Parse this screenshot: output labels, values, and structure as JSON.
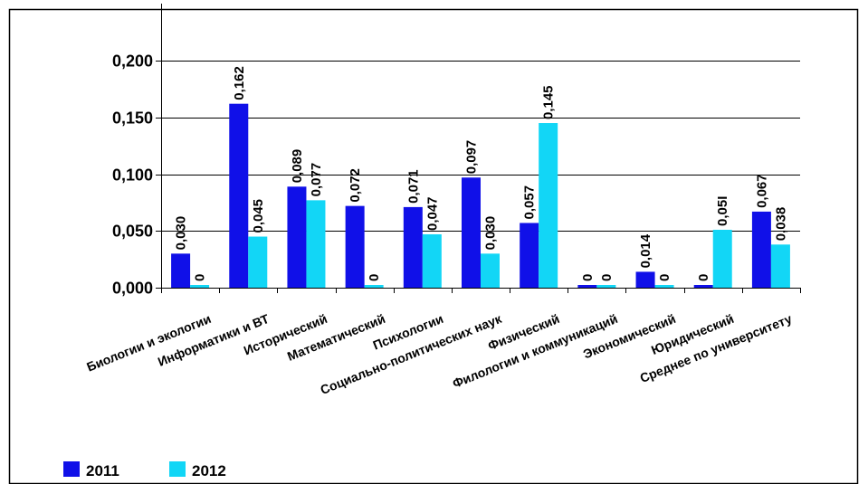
{
  "chart_data": {
    "type": "bar",
    "categories": [
      "Биологии и экологии",
      "Информатики и ВТ",
      "Исторический",
      "Математический",
      "Психологии",
      "Социально-политических наук",
      "Физический",
      "Филологии и коммуникаций",
      "Экономический",
      "Юридический",
      "Среднее по университету"
    ],
    "series": [
      {
        "name": "2011",
        "color": "#1010e8",
        "values": [
          0.03,
          0.162,
          0.089,
          0.072,
          0.071,
          0.097,
          0.057,
          0,
          0.014,
          0,
          0.067
        ],
        "labels": [
          "0,030",
          "0,162",
          "0,089",
          "0,072",
          "0,071",
          "0,097",
          "0,057",
          "0",
          "0,014",
          "0",
          "0,067"
        ]
      },
      {
        "name": "2012",
        "color": "#12d6f6",
        "values": [
          0,
          0.045,
          0.077,
          0,
          0.047,
          0.03,
          0.145,
          0,
          0,
          0.051,
          0.038
        ],
        "labels": [
          "0",
          "0,045",
          "0,077",
          "0",
          "0,047",
          "0,030",
          "0,145",
          "0",
          "0",
          "0,05I",
          "0,038"
        ]
      }
    ],
    "yticks": [
      {
        "value": 0.0,
        "label": "0,000"
      },
      {
        "value": 0.05,
        "label": "0,050"
      },
      {
        "value": 0.1,
        "label": "0,100"
      },
      {
        "value": 0.15,
        "label": "0,150"
      },
      {
        "value": 0.2,
        "label": "0,200"
      }
    ],
    "ylim": [
      0,
      0.2
    ],
    "grid": true,
    "legend_position": "bottom-left"
  }
}
